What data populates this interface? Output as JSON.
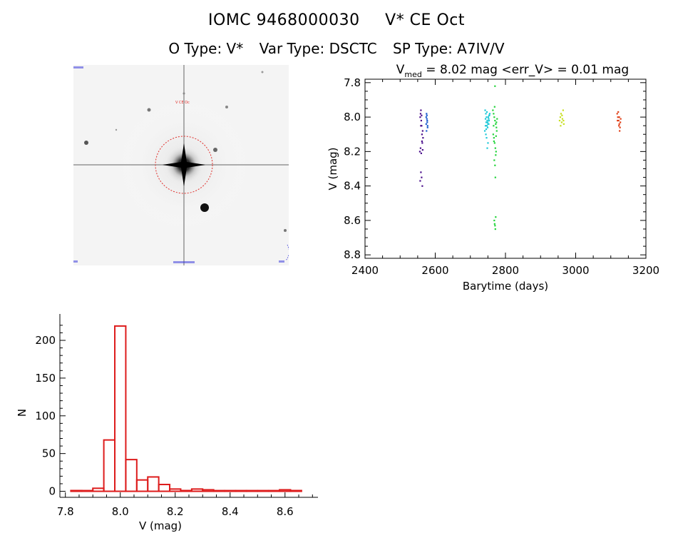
{
  "header": {
    "object_id": "IOMC 9468000030",
    "object_name": "V* CE Oct",
    "o_type": "O Type: V*",
    "var_type": "Var Type: DSCTC",
    "sp_type": "SP Type: A7IV/V"
  },
  "finder_image": {
    "target_label": "V CE Oc",
    "colors": {
      "circle": "#e0302c",
      "labels": "#2b2bd9",
      "stars": "#000000"
    }
  },
  "chart_data": [
    {
      "type": "scatter",
      "title_prefix": "V",
      "title_sub": "med",
      "title_rest": " = 8.02 mag <err_V> = 0.01 mag",
      "xlabel": "Barytime (days)",
      "ylabel": "V (mag)",
      "xlim": [
        2400,
        3200
      ],
      "ylim": [
        8.82,
        7.78
      ],
      "y_inverted": true,
      "xticks": [
        "2400",
        "2600",
        "2800",
        "3000",
        "3200"
      ],
      "yticks": [
        "7.8",
        "8.0",
        "8.2",
        "8.4",
        "8.6",
        "8.8"
      ],
      "series": [
        {
          "color": "#4b0f8c",
          "x": [
            2557,
            2558,
            2559,
            2560,
            2561,
            2562,
            2563,
            2564,
            2565,
            2556,
            2558,
            2560,
            2562,
            2564,
            2559,
            2561,
            2563,
            2557,
            2559,
            2561
          ],
          "y": [
            8.0,
            7.98,
            7.96,
            8.02,
            8.05,
            8.1,
            8.15,
            8.19,
            8.12,
            8.2,
            8.18,
            8.21,
            8.14,
            8.08,
            8.32,
            8.35,
            8.4,
            8.37,
            8.05,
            7.99
          ]
        },
        {
          "color": "#1f5fcf",
          "x": [
            2574,
            2575,
            2576,
            2577,
            2578,
            2575,
            2577,
            2576,
            2574,
            2578
          ],
          "y": [
            8.0,
            7.98,
            8.01,
            8.03,
            8.05,
            8.08,
            8.02,
            7.99,
            8.04,
            8.06
          ]
        },
        {
          "color": "#1ec8d8",
          "x": [
            2742,
            2744,
            2746,
            2748,
            2750,
            2752,
            2754,
            2743,
            2745,
            2747,
            2749,
            2751,
            2753,
            2741,
            2746,
            2750,
            2748,
            2744,
            2752,
            2755,
            2743,
            2749,
            2747,
            2753,
            2745
          ],
          "y": [
            7.96,
            7.98,
            8.0,
            8.02,
            8.04,
            8.01,
            7.99,
            8.05,
            8.03,
            7.97,
            8.06,
            8.0,
            8.02,
            8.08,
            8.12,
            8.15,
            8.18,
            8.1,
            8.04,
            7.98,
            8.01,
            8.03,
            8.05,
            7.99,
            8.07
          ]
        },
        {
          "color": "#22d43a",
          "x": [
            2764,
            2766,
            2768,
            2770,
            2772,
            2774,
            2776,
            2765,
            2767,
            2769,
            2771,
            2773,
            2775,
            2768,
            2770,
            2772,
            2766,
            2774,
            2769,
            2771,
            2767,
            2773,
            2768,
            2770,
            2772,
            2769,
            2771,
            2770
          ],
          "y": [
            7.96,
            7.98,
            8.0,
            8.02,
            8.04,
            8.06,
            8.01,
            8.1,
            8.12,
            8.15,
            8.18,
            8.2,
            8.08,
            8.25,
            8.28,
            8.22,
            8.05,
            8.03,
            7.94,
            8.35,
            8.14,
            8.11,
            8.6,
            8.63,
            8.58,
            8.62,
            8.65,
            7.82
          ]
        },
        {
          "color": "#c8e020",
          "x": [
            2954,
            2956,
            2958,
            2960,
            2962,
            2964,
            2966,
            2957,
            2961,
            2965
          ],
          "y": [
            8.02,
            8.0,
            7.98,
            8.03,
            8.01,
            7.96,
            8.04,
            8.05,
            7.99,
            8.02
          ]
        },
        {
          "color": "#e04018",
          "x": [
            3118,
            3120,
            3122,
            3124,
            3126,
            3128,
            3121,
            3123,
            3125,
            3127,
            3119,
            3124
          ],
          "y": [
            7.98,
            8.0,
            8.02,
            8.04,
            8.06,
            8.01,
            7.97,
            8.05,
            8.08,
            8.03,
            8.02,
            8.0
          ]
        }
      ]
    },
    {
      "type": "bar",
      "xlabel": "V (mag)",
      "ylabel": "N",
      "xlim": [
        7.78,
        8.72
      ],
      "ylim": [
        -8,
        235
      ],
      "xticks": [
        "7.8",
        "8.0",
        "8.2",
        "8.4",
        "8.6"
      ],
      "yticks": [
        "0",
        "50",
        "100",
        "150",
        "200"
      ],
      "color": "#dd1c1c",
      "bin_width": 0.04,
      "bin_starts": [
        7.82,
        7.86,
        7.9,
        7.94,
        7.98,
        8.02,
        8.06,
        8.1,
        8.14,
        8.18,
        8.22,
        8.26,
        8.3,
        8.34,
        8.38,
        8.42,
        8.46,
        8.5,
        8.54,
        8.58,
        8.62
      ],
      "values": [
        1,
        0,
        4,
        68,
        219,
        42,
        15,
        19,
        9,
        3,
        1,
        3,
        2,
        0,
        0,
        0,
        0,
        0,
        0,
        2,
        1
      ]
    }
  ]
}
